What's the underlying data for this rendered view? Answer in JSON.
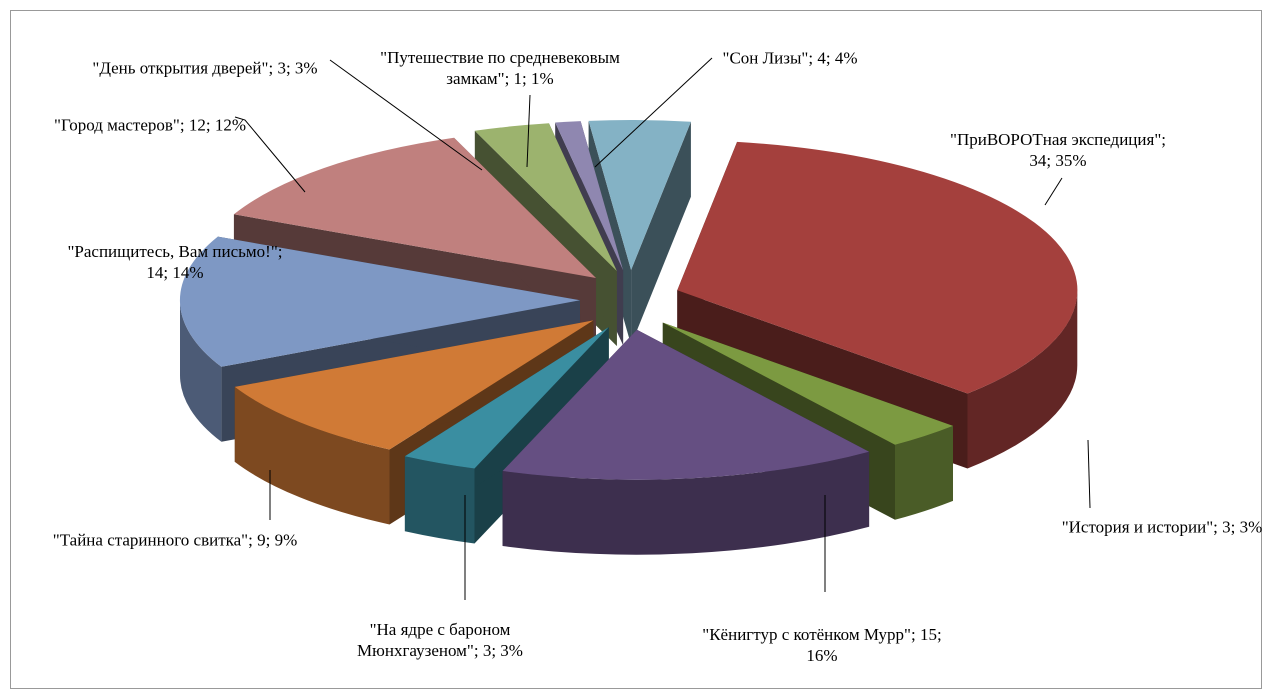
{
  "chart_data": {
    "type": "pie3d",
    "categories": [
      "\"ПриВОРОТная экспедиция\"",
      "\"История и истории\"",
      "\"Кёнигтур с котёнком Мурр\"",
      "\"На ядре с бароном Мюнхгаузеном\"",
      "\"Тайна старинного свитка\"",
      "\"Распищитесь, Вам письмо!\"",
      "\"Город мастеров\"",
      "\"День открытия дверей\"",
      "\"Путешествие по средневековым замкам\"",
      "\"Сон Лизы\""
    ],
    "values": [
      34,
      3,
      15,
      3,
      9,
      14,
      12,
      3,
      1,
      4
    ],
    "value_labels": [
      "34; 35%",
      "3; 3%",
      "15; 16%",
      "3; 3%",
      "9; 9%",
      "14; 14%",
      "12; 12%",
      "3; 3%",
      "1; 1%",
      "4; 4%"
    ],
    "separator": "; ",
    "colors": [
      "#a4403d",
      "#7c9a41",
      "#654f82",
      "#3a8ea1",
      "#d07a36",
      "#7e98c4",
      "#c0807e",
      "#9cb36e",
      "#8f87b0",
      "#84b2c5"
    ]
  }
}
